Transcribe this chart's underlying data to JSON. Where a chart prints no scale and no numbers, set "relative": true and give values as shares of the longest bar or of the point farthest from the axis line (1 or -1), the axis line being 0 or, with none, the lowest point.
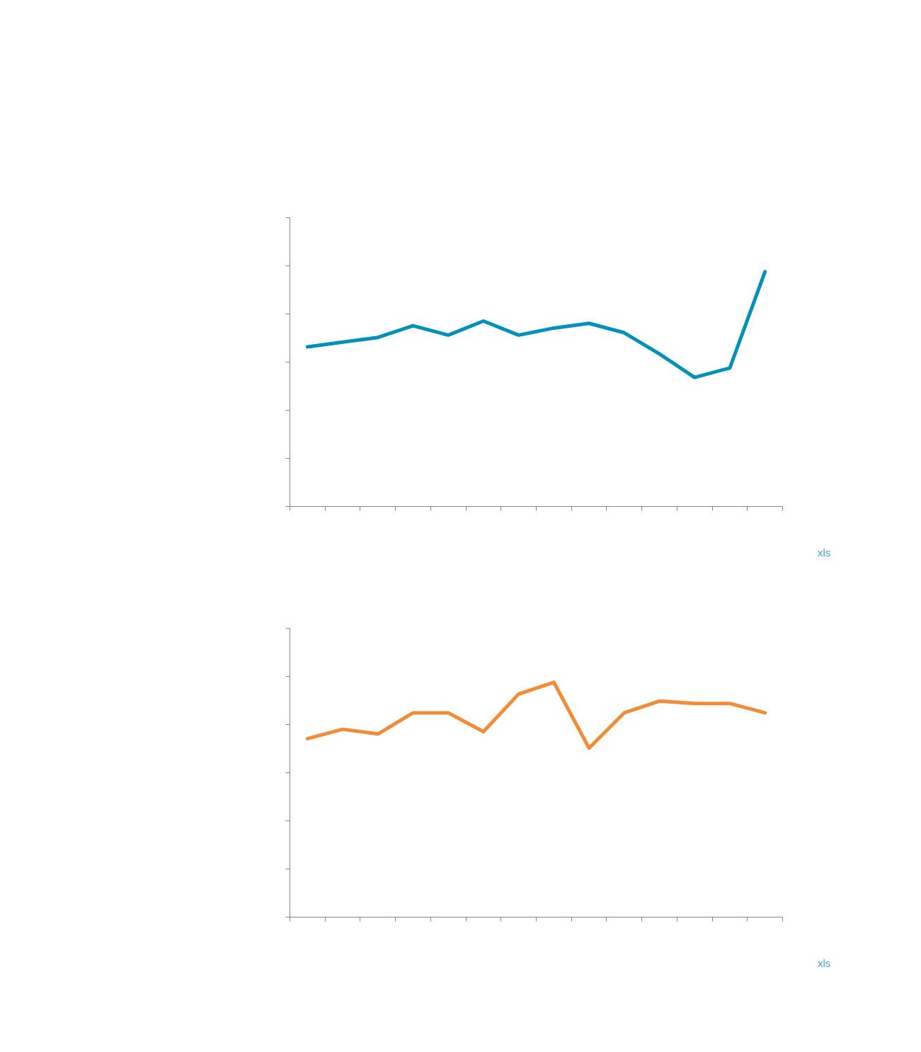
{
  "chart_data": [
    {
      "type": "line",
      "relative": true,
      "categories": [
        null,
        null,
        null,
        null,
        null,
        null,
        null,
        null,
        null,
        null,
        null,
        null,
        null,
        null
      ],
      "series": [
        {
          "color": "#0090b8",
          "values": [
            0.68,
            0.7,
            0.72,
            0.77,
            0.73,
            0.79,
            0.73,
            0.76,
            0.78,
            0.74,
            0.65,
            0.55,
            0.59,
            1.0
          ]
        }
      ],
      "grid": false,
      "marker": "none",
      "line_style": "solid",
      "annotations": [
        "xls"
      ]
    },
    {
      "type": "line",
      "relative": true,
      "categories": [
        null,
        null,
        null,
        null,
        null,
        null,
        null,
        null,
        null,
        null,
        null,
        null,
        null,
        null
      ],
      "series": [
        {
          "color": "#f28c38",
          "values": [
            0.76,
            0.8,
            0.78,
            0.87,
            0.87,
            0.79,
            0.95,
            1.0,
            0.72,
            0.87,
            0.92,
            0.91,
            0.91,
            0.87
          ]
        }
      ],
      "grid": false,
      "marker": "none",
      "line_style": "solid",
      "annotations": [
        "xls"
      ]
    }
  ]
}
